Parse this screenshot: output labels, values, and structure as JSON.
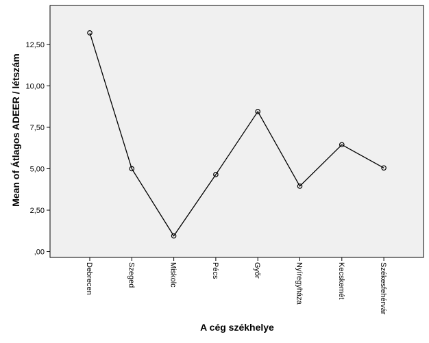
{
  "chart_data": {
    "type": "line",
    "title": "",
    "xlabel": "A cég székhelye",
    "ylabel": "Mean of Átlagos ADEER / létszám",
    "categories": [
      "Debrecen",
      "Szeged",
      "Miskolc",
      "Pécs",
      "Győr",
      "Nyíregyháza",
      "Kecskemét",
      "Székesfehérvár"
    ],
    "series": [
      {
        "values": [
          13.2,
          5.0,
          0.95,
          4.65,
          8.45,
          3.95,
          6.45,
          5.05
        ]
      }
    ],
    "ylim": [
      -0.35,
      14.85
    ],
    "yticks": [
      0,
      2.5,
      5,
      7.5,
      10,
      12.5
    ],
    "ytick_labels": [
      ",00",
      "2,50",
      "5,00",
      "7,50",
      "10,00",
      "12,50"
    ],
    "grid": false,
    "colors": {
      "plot_background": "#f0f0f0",
      "line": "#000000",
      "marker": "#000000"
    }
  }
}
